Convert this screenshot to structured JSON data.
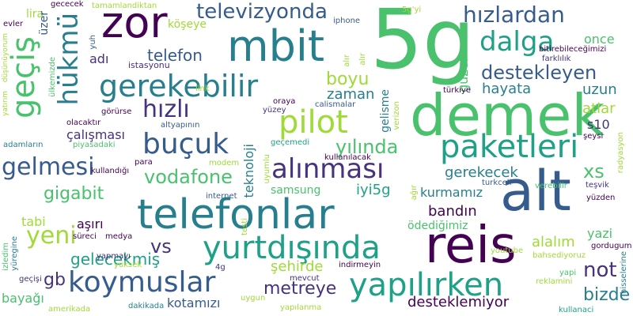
{
  "colors": {
    "background": "#ffffff",
    "palette": [
      "#440154",
      "#46327e",
      "#365c8d",
      "#277f8e",
      "#1fa187",
      "#4ac16d",
      "#a0da39",
      "#fde725"
    ]
  },
  "words": [
    {
      "text": "5g",
      "color": "#4ac16d"
    },
    {
      "text": "demek",
      "color": "#4ac16d"
    },
    {
      "text": "telefonlar",
      "color": "#277f8e"
    },
    {
      "text": "alt",
      "color": "#365c8d"
    },
    {
      "text": "reis",
      "color": "#440154"
    },
    {
      "text": "zor",
      "color": "#440154"
    },
    {
      "text": "mbit",
      "color": "#277f8e"
    },
    {
      "text": "pilot",
      "color": "#a0da39"
    },
    {
      "text": "paketleri",
      "color": "#1fa187"
    },
    {
      "text": "yapılırken",
      "color": "#1fa187"
    },
    {
      "text": "yurtdışında",
      "color": "#1fa187"
    },
    {
      "text": "koymuslar",
      "color": "#365c8d"
    },
    {
      "text": "alınması",
      "color": "#46327e"
    },
    {
      "text": "gerekebilir",
      "color": "#277f8e"
    },
    {
      "text": "dalga",
      "color": "#1fa187"
    },
    {
      "text": "buçuk",
      "color": "#365c8d"
    },
    {
      "text": "gelmesi",
      "color": "#365c8d"
    },
    {
      "text": "hükmü",
      "color": "#277f8e"
    },
    {
      "text": "geçiş",
      "color": "#4ac16d"
    },
    {
      "text": "hızlardan",
      "color": "#365c8d"
    },
    {
      "text": "televizyonda",
      "color": "#365c8d"
    },
    {
      "text": "hızlı",
      "color": "#46327e"
    },
    {
      "text": "yeni",
      "color": "#a0da39"
    },
    {
      "text": "destekleyen",
      "color": "#365c8d"
    },
    {
      "text": "vodafone",
      "color": "#4ac16d"
    },
    {
      "text": "yılında",
      "color": "#4ac16d"
    },
    {
      "text": "telefon",
      "color": "#365c8d"
    },
    {
      "text": "gigabit",
      "color": "#4ac16d"
    },
    {
      "text": "metreye",
      "color": "#46327e"
    },
    {
      "text": "bizde",
      "color": "#277f8e"
    },
    {
      "text": "vs",
      "color": "#46327e"
    },
    {
      "text": "gelecekmiş",
      "color": "#1fa187"
    },
    {
      "text": "boyu",
      "color": "#a0da39"
    },
    {
      "text": "gb",
      "color": "#46327e"
    },
    {
      "text": "not",
      "color": "#46327e"
    },
    {
      "text": "xs",
      "color": "#4ac16d"
    },
    {
      "text": "zaman",
      "color": "#277f8e"
    },
    {
      "text": "hayata",
      "color": "#277f8e"
    },
    {
      "text": "gerekecek",
      "color": "#277f8e"
    },
    {
      "text": "şehirde",
      "color": "#a0da39"
    },
    {
      "text": "bandın",
      "color": "#440154"
    },
    {
      "text": "desteklemiyor",
      "color": "#440154"
    },
    {
      "text": "kurmamız",
      "color": "#277f8e"
    },
    {
      "text": "alalım",
      "color": "#a0da39"
    },
    {
      "text": "atlar",
      "color": "#a0da39"
    },
    {
      "text": "uzun",
      "color": "#277f8e"
    },
    {
      "text": "once",
      "color": "#4ac16d"
    },
    {
      "text": "teknoloji",
      "color": "#277f8e"
    },
    {
      "text": "samsung",
      "color": "#4ac16d"
    },
    {
      "text": "iyi5g",
      "color": "#1fa187"
    },
    {
      "text": "çalışması",
      "color": "#46327e"
    },
    {
      "text": "köşeye",
      "color": "#a0da39"
    },
    {
      "text": "adı",
      "color": "#46327e"
    },
    {
      "text": "aşırı",
      "color": "#440154"
    },
    {
      "text": "tabi",
      "color": "#a0da39"
    },
    {
      "text": "bayağı",
      "color": "#4ac16d"
    },
    {
      "text": "kotamızı",
      "color": "#365c8d"
    },
    {
      "text": "ödediğimiz",
      "color": "#4ac16d"
    },
    {
      "text": "s10",
      "color": "#46327e"
    },
    {
      "text": "yazi",
      "color": "#4ac16d"
    },
    {
      "text": "gelisme",
      "color": "#277f8e"
    },
    {
      "text": "güzel",
      "color": "#4ac16d"
    },
    {
      "text": "lira",
      "color": "#a0da39"
    },
    {
      "text": "üzer",
      "color": "#365c8d"
    },
    {
      "text": "istasyonu",
      "color": "#46327e"
    },
    {
      "text": "gececek",
      "color": "#440154"
    },
    {
      "text": "tamamlandiktan",
      "color": "#a0da39"
    },
    {
      "text": "5g'yi",
      "color": "#a0da39"
    },
    {
      "text": "iphone",
      "color": "#365c8d"
    },
    {
      "text": "bitirebileceğimizi",
      "color": "#440154"
    },
    {
      "text": "farklılık",
      "color": "#46327e"
    },
    {
      "text": "evler",
      "color": "#440154"
    },
    {
      "text": "ülkemizde",
      "color": "#4ac16d"
    },
    {
      "text": "yatırım",
      "color": "#a0da39"
    },
    {
      "text": "düşünüyorum",
      "color": "#a0da39"
    },
    {
      "text": "yuh",
      "color": "#365c8d"
    },
    {
      "text": "link",
      "color": "#a0da39"
    },
    {
      "text": "alır",
      "color": "#a0da39"
    },
    {
      "text": "alır",
      "color": "#a0da39"
    },
    {
      "text": "türkiye",
      "color": "#440154"
    },
    {
      "text": "oraya",
      "color": "#440154"
    },
    {
      "text": "yüzey",
      "color": "#46327e"
    },
    {
      "text": "calismalar",
      "color": "#365c8d"
    },
    {
      "text": "verizon",
      "color": "#a0da39"
    },
    {
      "text": "görürse",
      "color": "#440154"
    },
    {
      "text": "olacaktır",
      "color": "#440154"
    },
    {
      "text": "altyapının",
      "color": "#365c8d"
    },
    {
      "text": "adamların",
      "color": "#277f8e"
    },
    {
      "text": "piyasadaki",
      "color": "#4ac16d"
    },
    {
      "text": "geçemedi",
      "color": "#1fa187"
    },
    {
      "text": "şeysi",
      "color": "#440154"
    },
    {
      "text": "radyasyon",
      "color": "#a0da39"
    },
    {
      "text": "kullanılacak",
      "color": "#440154"
    },
    {
      "text": "para",
      "color": "#440154"
    },
    {
      "text": "modem",
      "color": "#a0da39"
    },
    {
      "text": "uyumlu",
      "color": "#a0da39"
    },
    {
      "text": "turkcell",
      "color": "#365c8d"
    },
    {
      "text": "verebilir",
      "color": "#4ac16d"
    },
    {
      "text": "teşvik",
      "color": "#46327e"
    },
    {
      "text": "kullandığı",
      "color": "#440154"
    },
    {
      "text": "internet",
      "color": "#365c8d"
    },
    {
      "text": "yüzden",
      "color": "#440154"
    },
    {
      "text": "gordugum",
      "color": "#440154"
    },
    {
      "text": "süreci",
      "color": "#440154"
    },
    {
      "text": "medya",
      "color": "#440154"
    },
    {
      "text": "testi",
      "color": "#a0da39"
    },
    {
      "text": "ağır",
      "color": "#a0da39"
    },
    {
      "text": "youtube",
      "color": "#a0da39"
    },
    {
      "text": "yapmayı",
      "color": "#46327e"
    },
    {
      "text": "yüksek",
      "color": "#a0da39"
    },
    {
      "text": "bahsediyoruz",
      "color": "#a0da39"
    },
    {
      "text": "hisselerine",
      "color": "#277f8e"
    },
    {
      "text": "izledim",
      "color": "#4ac16d"
    },
    {
      "text": "yüregine",
      "color": "#277f8e"
    },
    {
      "text": "geçişi",
      "color": "#46327e"
    },
    {
      "text": "4g",
      "color": "#46327e"
    },
    {
      "text": "indirmeyin",
      "color": "#440154"
    },
    {
      "text": "yapi",
      "color": "#4ac16d"
    },
    {
      "text": "reklamini",
      "color": "#a0da39"
    },
    {
      "text": "mevcut",
      "color": "#46327e"
    },
    {
      "text": "uygun",
      "color": "#a0da39"
    },
    {
      "text": "amerikada",
      "color": "#a0da39"
    },
    {
      "text": "dakikada",
      "color": "#277f8e"
    },
    {
      "text": "yapılanma",
      "color": "#a0da39"
    },
    {
      "text": "kullanaci",
      "color": "#1fa187"
    }
  ]
}
